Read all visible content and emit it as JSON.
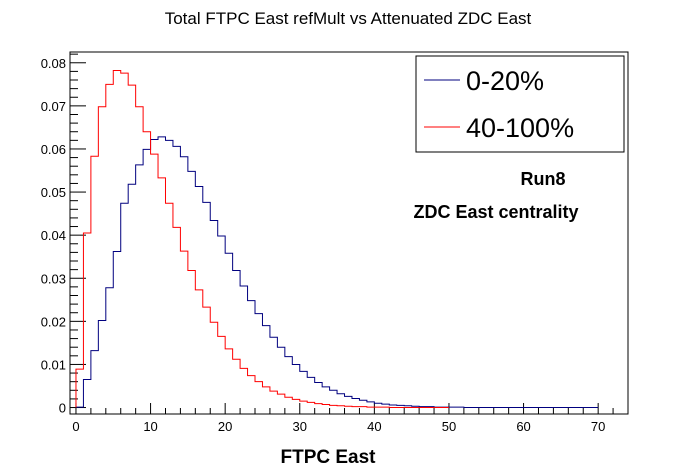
{
  "chart_data": {
    "type": "line",
    "title": "Total FTPC East refMult vs Attenuated  ZDC East",
    "xlabel": "FTPC East",
    "ylabel": "",
    "xlim": [
      -0.8,
      74
    ],
    "ylim": [
      -0.0015,
      0.0825
    ],
    "xticks": [
      0,
      10,
      20,
      30,
      40,
      50,
      60,
      70
    ],
    "xtick_labels": [
      "0",
      "10",
      "20",
      "30",
      "40",
      "50",
      "60",
      "70"
    ],
    "yticks": [
      0,
      0.01,
      0.02,
      0.03,
      0.04,
      0.05,
      0.06,
      0.07,
      0.08
    ],
    "ytick_labels": [
      "0",
      "0.01",
      "0.02",
      "0.03",
      "0.04",
      "0.05",
      "0.06",
      "0.07",
      "0.08"
    ],
    "grid": false,
    "legend_position": "top-right",
    "bin_edges_start": 0,
    "bin_width": 1,
    "series": [
      {
        "name": "0-20%",
        "color": "#00007f",
        "values": [
          0.0001,
          0.0065,
          0.0132,
          0.0202,
          0.0278,
          0.0362,
          0.0474,
          0.0518,
          0.0563,
          0.0599,
          0.0622,
          0.0628,
          0.062,
          0.0606,
          0.0582,
          0.0548,
          0.0513,
          0.0476,
          0.0434,
          0.0398,
          0.0358,
          0.0318,
          0.0282,
          0.0248,
          0.0218,
          0.019,
          0.0163,
          0.014,
          0.0118,
          0.01,
          0.0084,
          0.007,
          0.0058,
          0.0048,
          0.004,
          0.0032,
          0.0026,
          0.0021,
          0.0017,
          0.0013,
          0.001,
          0.0008,
          0.0006,
          0.0005,
          0.0004,
          0.0003,
          0.0002,
          0.0002,
          0.0001,
          0.0001,
          0.0001,
          0.0001,
          0.0,
          0.0,
          0.0,
          0.0,
          0.0,
          0.0,
          0.0,
          0.0,
          0.0,
          0.0,
          0.0,
          0.0,
          0.0,
          0.0,
          0.0,
          0.0,
          0.0,
          0.0
        ]
      },
      {
        "name": "40-100%",
        "color": "#ff0000",
        "values": [
          0.0089,
          0.0405,
          0.0583,
          0.0698,
          0.075,
          0.0782,
          0.0776,
          0.0748,
          0.0698,
          0.064,
          0.0588,
          0.0533,
          0.0474,
          0.0418,
          0.0363,
          0.0318,
          0.0273,
          0.0233,
          0.0198,
          0.0165,
          0.0136,
          0.0112,
          0.0091,
          0.0074,
          0.006,
          0.0048,
          0.0038,
          0.0031,
          0.0024,
          0.0019,
          0.0015,
          0.0012,
          0.0009,
          0.0007,
          0.0005,
          0.0004,
          0.0003,
          0.0002,
          0.0002,
          0.0001,
          0.0001,
          0.0001,
          0.0,
          0.0,
          0.0,
          0.0,
          0.0,
          0.0,
          0.0,
          0.0
        ]
      }
    ],
    "annotations": [
      "Run8",
      "ZDC East centrality"
    ]
  }
}
